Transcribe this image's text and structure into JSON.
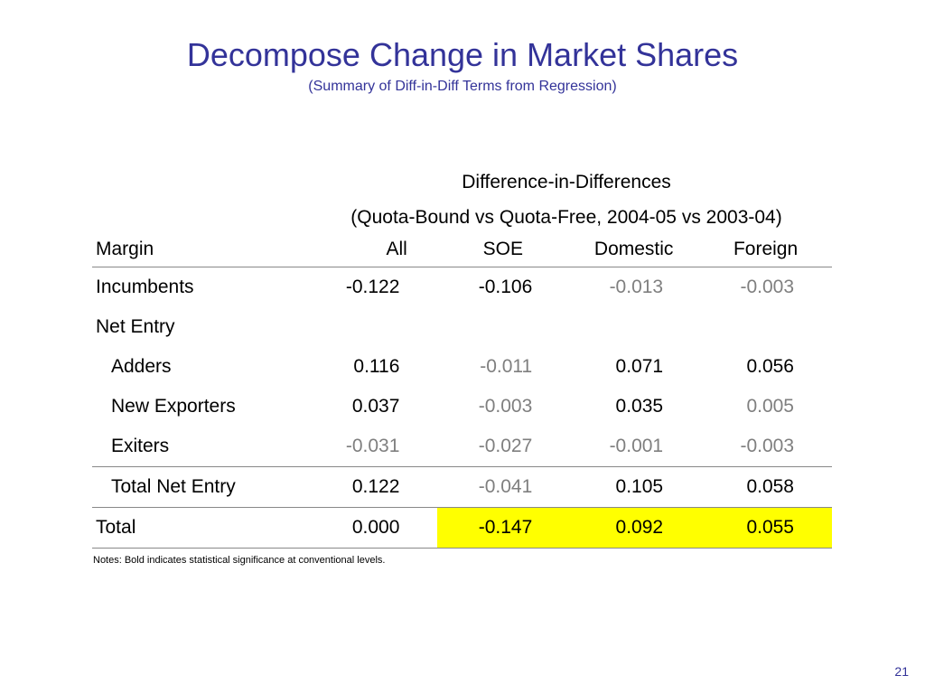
{
  "slide": {
    "title": "Decompose Change in Market Shares",
    "subtitle": "(Summary of Diff-in-Diff Terms from Regression)",
    "page_number": "21",
    "notes": "Notes: Bold indicates statistical significance at conventional levels."
  },
  "colors": {
    "title": "#333399",
    "not_significant": "#7f7f7f",
    "highlight": "#ffff00"
  },
  "table": {
    "super_header_1": "Difference-in-Differences",
    "super_header_2": "(Quota-Bound vs Quota-Free, 2004-05 vs 2003-04)",
    "columns": [
      "Margin",
      "All",
      "SOE",
      "Domestic",
      "Foreign"
    ],
    "rows": [
      {
        "label": "Incumbents",
        "indent": false,
        "cells": [
          {
            "v": "-0.122",
            "sig": true,
            "hl": false
          },
          {
            "v": "-0.106",
            "sig": true,
            "hl": false
          },
          {
            "v": "-0.013",
            "sig": false,
            "hl": false
          },
          {
            "v": "-0.003",
            "sig": false,
            "hl": false
          }
        ]
      },
      {
        "label": "Net Entry",
        "indent": false,
        "cells": []
      },
      {
        "label": "Adders",
        "indent": true,
        "cells": [
          {
            "v": "0.116",
            "sig": true,
            "hl": false
          },
          {
            "v": "-0.011",
            "sig": false,
            "hl": false
          },
          {
            "v": "0.071",
            "sig": true,
            "hl": false
          },
          {
            "v": "0.056",
            "sig": true,
            "hl": false
          }
        ]
      },
      {
        "label": "New Exporters",
        "indent": true,
        "cells": [
          {
            "v": "0.037",
            "sig": true,
            "hl": false
          },
          {
            "v": "-0.003",
            "sig": false,
            "hl": false
          },
          {
            "v": "0.035",
            "sig": true,
            "hl": false
          },
          {
            "v": "0.005",
            "sig": false,
            "hl": false
          }
        ]
      },
      {
        "label": "Exiters",
        "indent": true,
        "cells": [
          {
            "v": "-0.031",
            "sig": false,
            "hl": false
          },
          {
            "v": "-0.027",
            "sig": false,
            "hl": false
          },
          {
            "v": "-0.001",
            "sig": false,
            "hl": false
          },
          {
            "v": "-0.003",
            "sig": false,
            "hl": false
          }
        ]
      },
      {
        "label": "Total Net Entry",
        "indent": true,
        "cells": [
          {
            "v": "0.122",
            "sig": true,
            "hl": false
          },
          {
            "v": "-0.041",
            "sig": false,
            "hl": false
          },
          {
            "v": "0.105",
            "sig": true,
            "hl": false
          },
          {
            "v": "0.058",
            "sig": true,
            "hl": false
          }
        ]
      },
      {
        "label": "Total",
        "indent": false,
        "cells": [
          {
            "v": "0.000",
            "sig": false,
            "plain": true,
            "hl": false
          },
          {
            "v": "-0.147",
            "sig": true,
            "hl": true
          },
          {
            "v": "0.092",
            "sig": true,
            "hl": true
          },
          {
            "v": "0.055",
            "sig": true,
            "hl": true
          }
        ]
      }
    ]
  }
}
